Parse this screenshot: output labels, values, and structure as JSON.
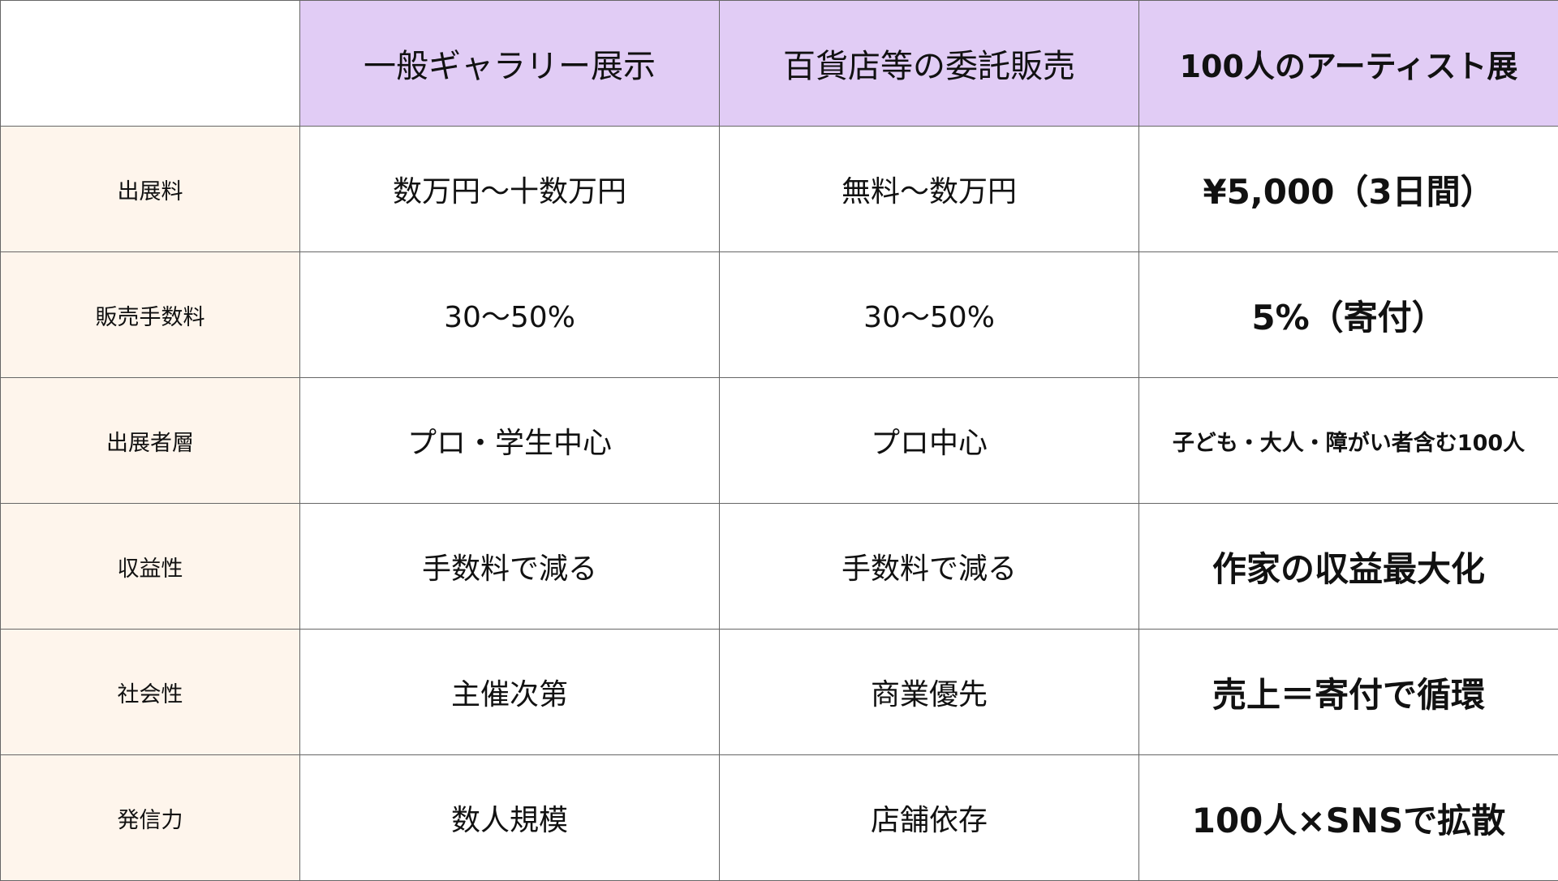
{
  "header": [
    "",
    "一般ギャラリー展示",
    "百貨店等の委託販売",
    "100人のアーティスト展"
  ],
  "rows": [
    {
      "label": "出展料",
      "values": [
        "数万円〜十数万円",
        "無料〜数万円",
        "¥5,000（3日間）"
      ]
    },
    {
      "label": "販売手数料",
      "values": [
        "30〜50%",
        "30〜50%",
        "5%（寄付）"
      ]
    },
    {
      "label": "出展者層",
      "values": [
        "プロ・学生中心",
        "プロ中心",
        "子ども・大人・障がい者含む100人"
      ]
    },
    {
      "label": "収益性",
      "values": [
        "手数料で減る",
        "手数料で減る",
        "作家の収益最大化"
      ]
    },
    {
      "label": "社会性",
      "values": [
        "主催次第",
        "商業優先",
        "売上＝寄付で循環"
      ]
    },
    {
      "label": "発信力",
      "values": [
        "数人規模",
        "店舗依存",
        "100人×SNSで拡散"
      ]
    }
  ],
  "colors": {
    "header_bg": "#e1ccf5",
    "label_bg": "#fef5ec",
    "border": "#666666"
  }
}
